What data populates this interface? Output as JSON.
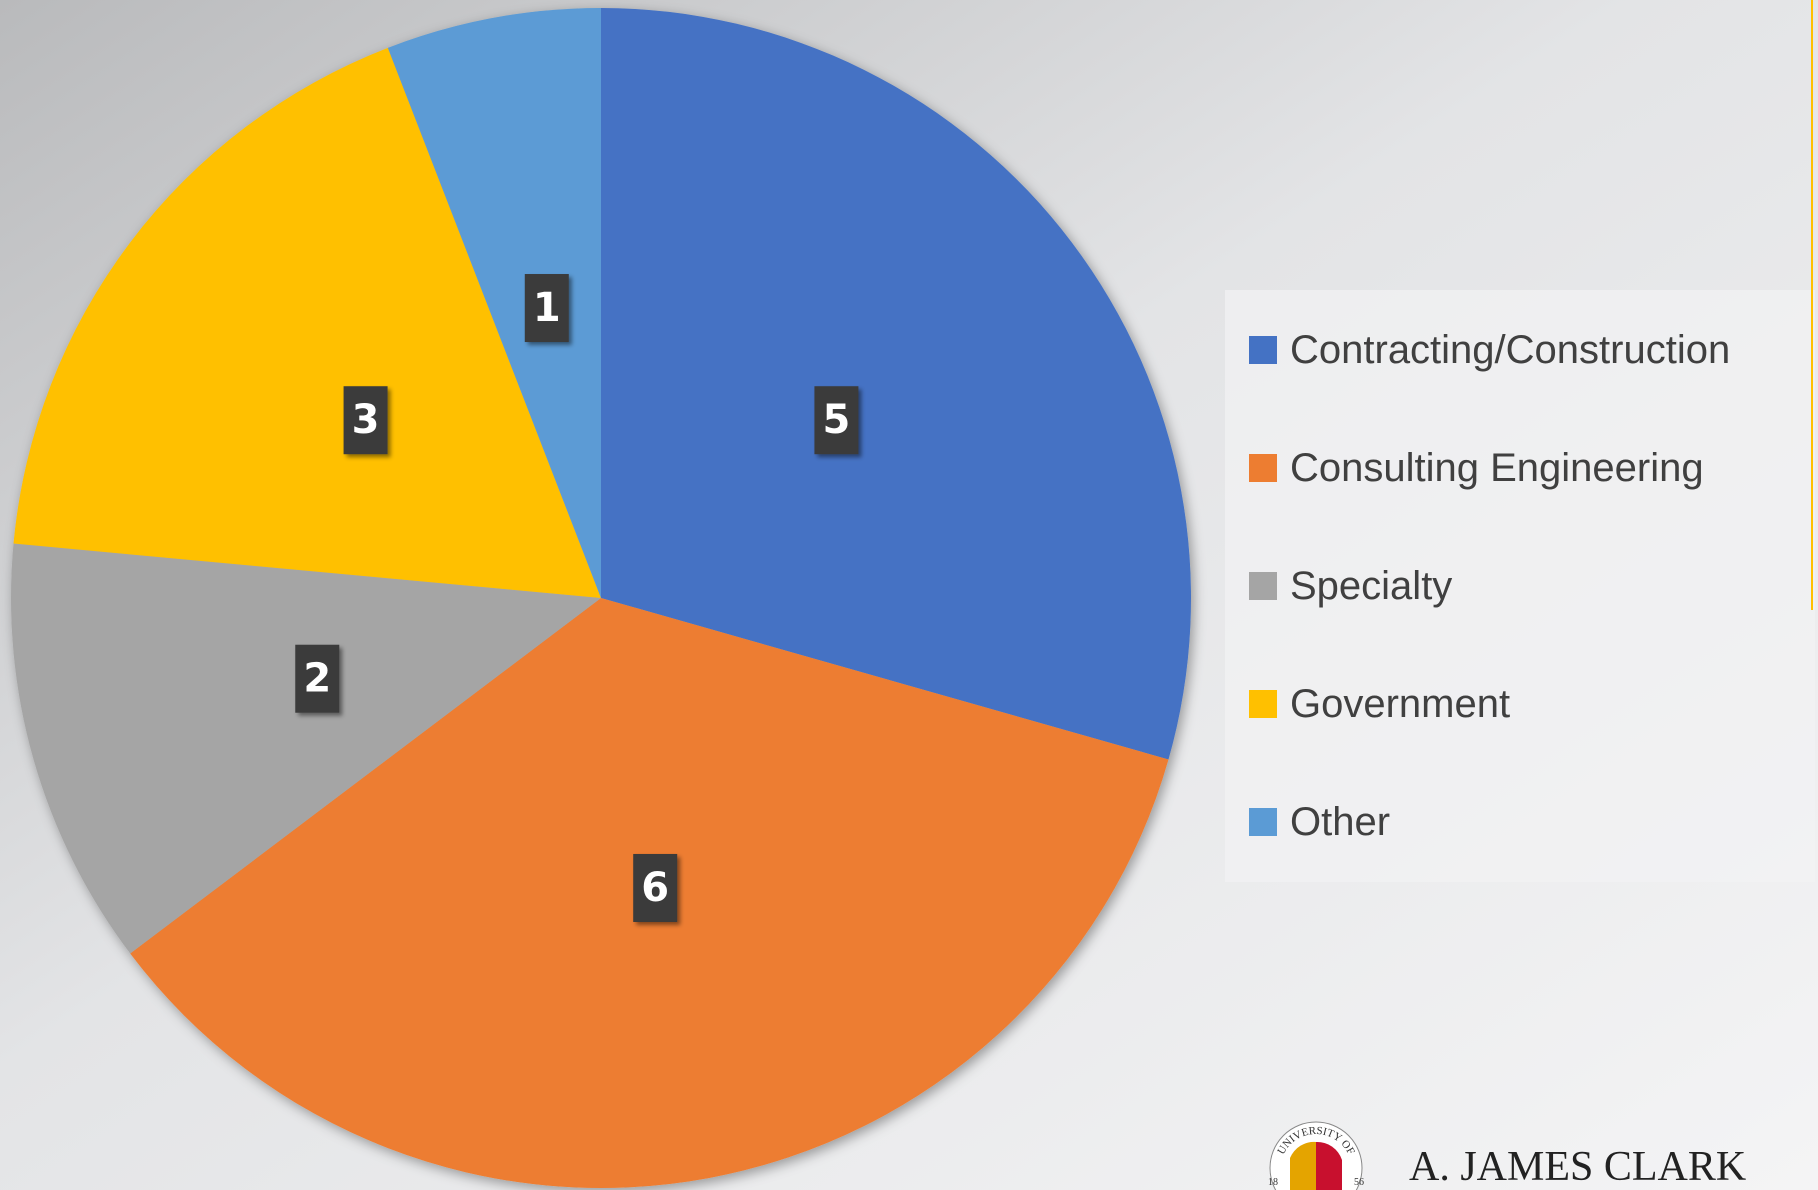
{
  "chart_data": {
    "type": "pie",
    "categories": [
      "Contracting/Construction",
      "Consulting Engineering",
      "Specialty",
      "Government",
      "Other"
    ],
    "values": [
      5,
      6,
      2,
      3,
      1
    ],
    "colors": [
      "#4472c4",
      "#ed7d31",
      "#a5a5a5",
      "#ffc000",
      "#5b9bd5"
    ],
    "legend": "right"
  },
  "logo": {
    "seal_text": "UNIVERSITY OF",
    "seal_years": [
      "18",
      "56"
    ],
    "name": "A. JAMES CLARK"
  }
}
